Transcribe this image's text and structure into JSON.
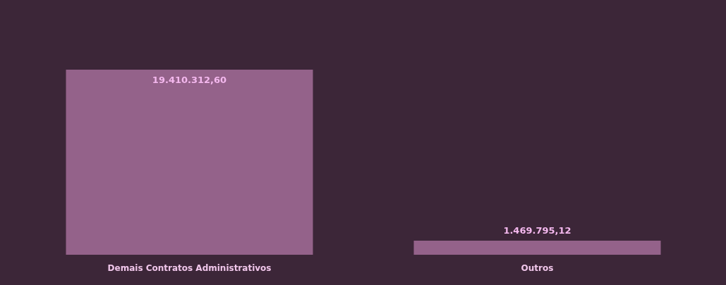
{
  "chart_data": {
    "type": "bar",
    "categories": [
      "Demais Contratos Administrativos",
      "Outros"
    ],
    "values": [
      19410312.6,
      1469795.12
    ],
    "value_labels": [
      "19.410.312,60",
      "1.469.795,12"
    ],
    "color": "#94628a",
    "grid": false
  }
}
